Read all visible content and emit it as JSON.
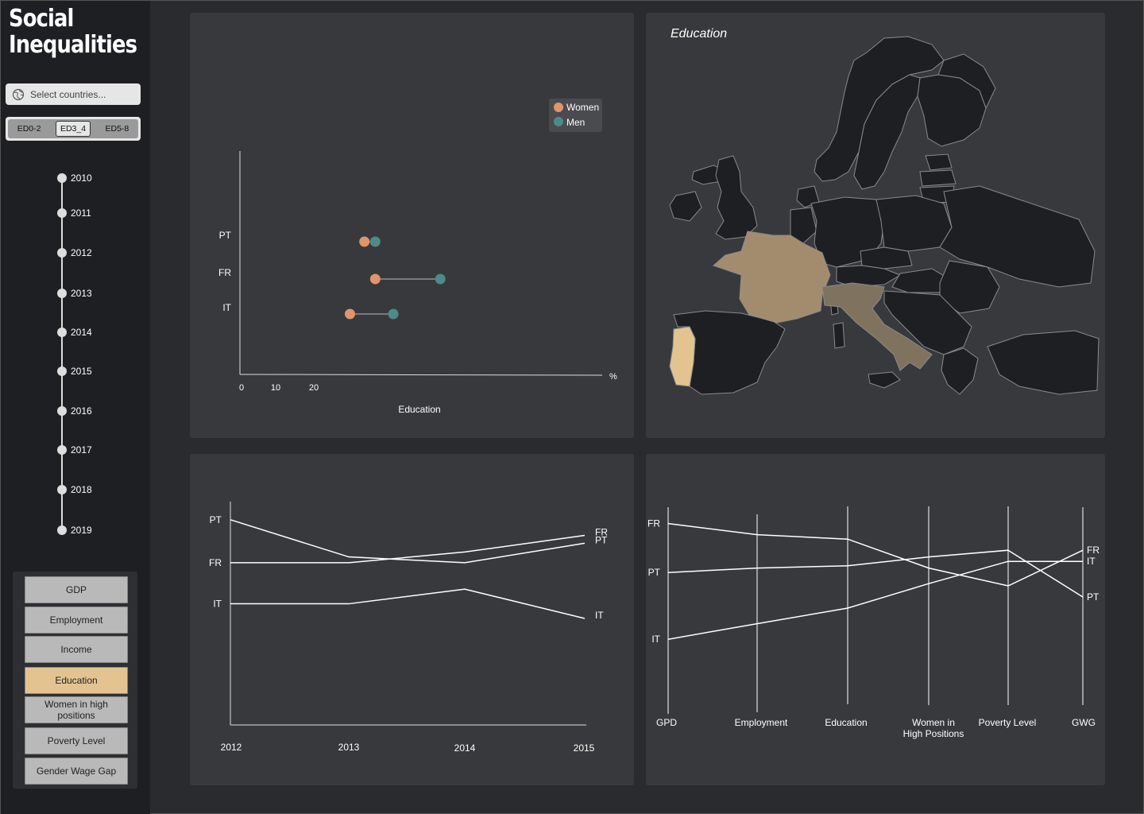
{
  "app": {
    "title_line1": "Social",
    "title_line2": "Inequalities"
  },
  "country_select": {
    "placeholder": "Select countries..."
  },
  "education_levels": {
    "options": [
      "ED0-2",
      "ED3_4",
      "ED5-8"
    ],
    "selected": "ED3_4"
  },
  "timeline": {
    "years": [
      "2010",
      "2011",
      "2012",
      "2013",
      "2014",
      "2015",
      "2016",
      "2017",
      "2018",
      "2019"
    ]
  },
  "indicators": {
    "items": [
      "GDP",
      "Employment",
      "Income",
      "Education",
      "Women in high positions",
      "Poverty Level",
      "Gender Wage Gap"
    ],
    "selected": "Education"
  },
  "colors": {
    "women": "#e0956b",
    "men": "#4e8a8a",
    "selected_indicator": "#e3c490",
    "pt": "#e3c490",
    "fr": "#a38c6e",
    "it": "#7f735f"
  },
  "map": {
    "title": "Education",
    "highlighted": [
      "PT",
      "FR",
      "IT"
    ]
  },
  "chart_data": [
    {
      "type": "dumbbell",
      "xlabel": "Education",
      "x_unit": "%",
      "x_ticks": [
        "0",
        "10",
        "20"
      ],
      "categories": [
        "PT",
        "FR",
        "IT"
      ],
      "series": [
        {
          "name": "Women",
          "values": [
            34,
            37,
            30
          ]
        },
        {
          "name": "Men",
          "values": [
            37,
            55,
            42
          ]
        }
      ],
      "xlim": [
        0,
        100
      ],
      "legend": "top-right"
    },
    {
      "type": "line",
      "x": [
        "2012",
        "2013",
        "2014",
        "2015"
      ],
      "series": [
        {
          "name": "PT",
          "values": [
            27,
            23.2,
            22.6,
            24.6
          ]
        },
        {
          "name": "FR",
          "values": [
            22.6,
            22.6,
            23.7,
            25.4
          ]
        },
        {
          "name": "IT",
          "values": [
            18.4,
            18.4,
            19.9,
            16.9
          ]
        }
      ],
      "ylim": [
        6,
        27.8
      ]
    },
    {
      "type": "parallel",
      "axes": [
        "GPD",
        "Employment",
        "Education",
        "Women in\nHigh Positions",
        "Poverty Level",
        "GWG"
      ],
      "series": [
        {
          "name": "FR",
          "values": [
            0.83,
            0.78,
            0.76,
            0.63,
            0.55,
            0.71
          ]
        },
        {
          "name": "PT",
          "values": [
            0.61,
            0.63,
            0.64,
            0.68,
            0.71,
            0.5
          ]
        },
        {
          "name": "IT",
          "values": [
            0.31,
            0.38,
            0.45,
            0.56,
            0.66,
            0.66
          ]
        }
      ],
      "ylim": [
        0,
        1
      ]
    }
  ]
}
